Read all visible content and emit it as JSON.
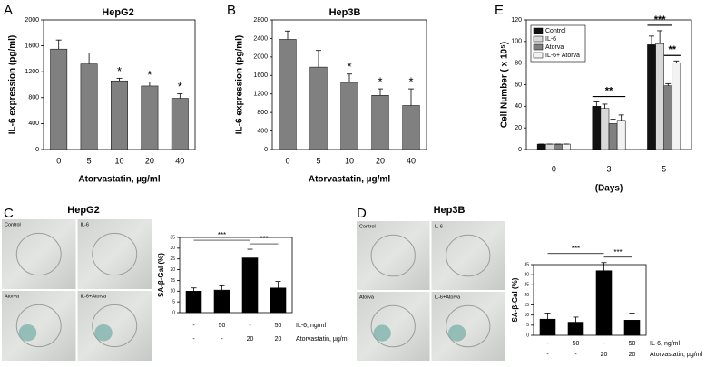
{
  "chart_data": [
    {
      "type": "bar",
      "panel": "A",
      "title": "HepG2",
      "y_label": "IL-6 expression (pg/ml)",
      "x_label": "Atorvastatin, µg/ml",
      "categories": [
        "0",
        "5",
        "10",
        "20",
        "40"
      ],
      "values": [
        1550,
        1320,
        1060,
        980,
        790
      ],
      "errors": [
        140,
        170,
        40,
        60,
        70
      ],
      "significance": [
        null,
        null,
        "*",
        "*",
        "*"
      ],
      "color": "#808080",
      "ylim": [
        0,
        2000
      ],
      "yticks": [
        0,
        400,
        800,
        1200,
        1600,
        2000
      ]
    },
    {
      "type": "bar",
      "panel": "B",
      "title": "Hep3B",
      "y_label": "IL-6 expression (pg/ml)",
      "x_label": "Atorvastatin, µg/ml",
      "categories": [
        "0",
        "5",
        "10",
        "20",
        "40"
      ],
      "values": [
        2380,
        1780,
        1450,
        1170,
        950
      ],
      "errors": [
        180,
        360,
        180,
        140,
        360
      ],
      "significance": [
        null,
        null,
        "*",
        "*",
        "*"
      ],
      "color": "#808080",
      "ylim": [
        0,
        2800
      ],
      "yticks": [
        0,
        400,
        800,
        1200,
        1600,
        2000,
        2400,
        2800
      ]
    },
    {
      "type": "bar",
      "panel": "E",
      "y_label": "Cell Number ( x 10⁵)",
      "x_label": "(Days)",
      "categories": [
        "0",
        "3",
        "5"
      ],
      "series": [
        {
          "name": "Control",
          "color": "#111111",
          "values": [
            5,
            40,
            97
          ],
          "errors": [
            0,
            4,
            8
          ]
        },
        {
          "name": "IL-6",
          "color": "#d9d9d9",
          "values": [
            5,
            38,
            98
          ],
          "errors": [
            0,
            4,
            12
          ]
        },
        {
          "name": "Atorva",
          "color": "#808080",
          "values": [
            5,
            24,
            59
          ],
          "errors": [
            0,
            4,
            2
          ]
        },
        {
          "name": "IL-6+ Atorva",
          "color": "#f2f2f2",
          "values": [
            5,
            27,
            80
          ],
          "errors": [
            0,
            5,
            2
          ]
        }
      ],
      "brackets": [
        {
          "text": "**",
          "category": 1,
          "from": 0,
          "to": 3
        },
        {
          "text": "***",
          "category": 2,
          "from": 0,
          "to": 2
        },
        {
          "text": "**",
          "category": 2,
          "from": 2,
          "to": 3
        }
      ],
      "ylim": [
        0,
        120
      ],
      "yticks": [
        0,
        20,
        40,
        60,
        80,
        100,
        120
      ]
    },
    {
      "type": "bar",
      "panel": "C",
      "title": "HepG2",
      "images": [
        "Control",
        "IL-6",
        "Atorva",
        "IL-6+Atorva"
      ],
      "y_label": "SA-β-Gal (%)",
      "values": [
        10,
        10.5,
        25.5,
        11.5
      ],
      "errors": [
        1.5,
        2,
        4,
        3
      ],
      "color": "#000000",
      "rows": [
        {
          "label": "IL-6, ng/ml",
          "cells": [
            "-",
            "50",
            "-",
            "50"
          ]
        },
        {
          "label": "Atorvastatin, µg/ml",
          "cells": [
            "-",
            "-",
            "20",
            "20"
          ]
        }
      ],
      "brackets": [
        {
          "text": "***",
          "from": 0,
          "to": 2
        },
        {
          "text": "***",
          "from": 2,
          "to": 3
        }
      ],
      "ylim": [
        0,
        35
      ],
      "yticks": [
        0,
        5,
        10,
        15,
        20,
        25,
        30,
        35
      ]
    },
    {
      "type": "bar",
      "panel": "D",
      "title": "Hep3B",
      "images": [
        "Control",
        "IL-6",
        "Atorva",
        "IL-6+Atorva"
      ],
      "y_label": "SA-β-Gal (%)",
      "values": [
        8,
        6.5,
        32,
        7.5
      ],
      "errors": [
        3,
        2.5,
        4,
        3.5
      ],
      "color": "#000000",
      "rows": [
        {
          "label": "IL-6, ng/ml",
          "cells": [
            "-",
            "50",
            "-",
            "50"
          ]
        },
        {
          "label": "Atorvastatin, µg/ml",
          "cells": [
            "-",
            "-",
            "20",
            "20"
          ]
        }
      ],
      "brackets": [
        {
          "text": "***",
          "from": 0,
          "to": 2
        },
        {
          "text": "***",
          "from": 2,
          "to": 3
        }
      ],
      "ylim": [
        0,
        35
      ],
      "yticks": [
        0,
        5,
        10,
        15,
        20,
        25,
        30,
        35
      ]
    }
  ]
}
